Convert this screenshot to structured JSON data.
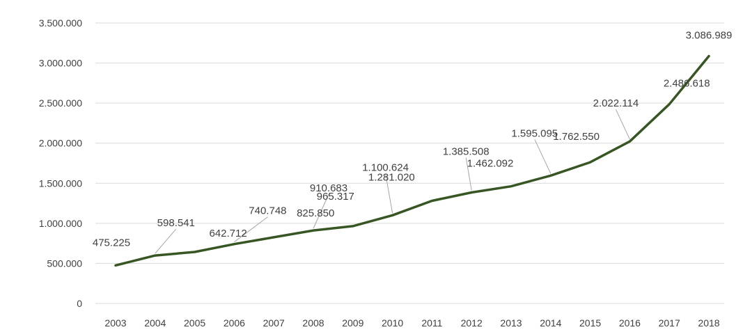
{
  "chart_data": {
    "type": "line",
    "title": "",
    "xlabel": "",
    "ylabel": "",
    "categories": [
      "2003",
      "2004",
      "2005",
      "2006",
      "2007",
      "2008",
      "2009",
      "2010",
      "2011",
      "2012",
      "2013",
      "2014",
      "2015",
      "2016",
      "2017",
      "2018"
    ],
    "series": [
      {
        "values": [
          475225,
          598541,
          642712,
          740748,
          825850,
          910683,
          965317,
          1100624,
          1281020,
          1385508,
          1462092,
          1595095,
          1762550,
          2022114,
          2486618,
          3086989
        ],
        "labels": [
          "475.225",
          "598.541",
          "642.712",
          "740.748",
          "825.850",
          "910.683",
          "965.317",
          "1.100.624",
          "1.281.020",
          "1.385.508",
          "1.462.092",
          "1.595.095",
          "1.762.550",
          "2.022.114",
          "2.486.618",
          "3.086.989"
        ],
        "color": "#375623"
      }
    ],
    "y_ticks": [
      0,
      500000,
      1000000,
      1500000,
      2000000,
      2500000,
      3000000,
      3500000
    ],
    "y_tick_labels": [
      "0",
      "500.000",
      "1.000.000",
      "1.500.000",
      "2.000.000",
      "2.500.000",
      "3.000.000",
      "3.500.000"
    ],
    "ylim": [
      0,
      3500000
    ],
    "grid": true,
    "legend": "none"
  }
}
